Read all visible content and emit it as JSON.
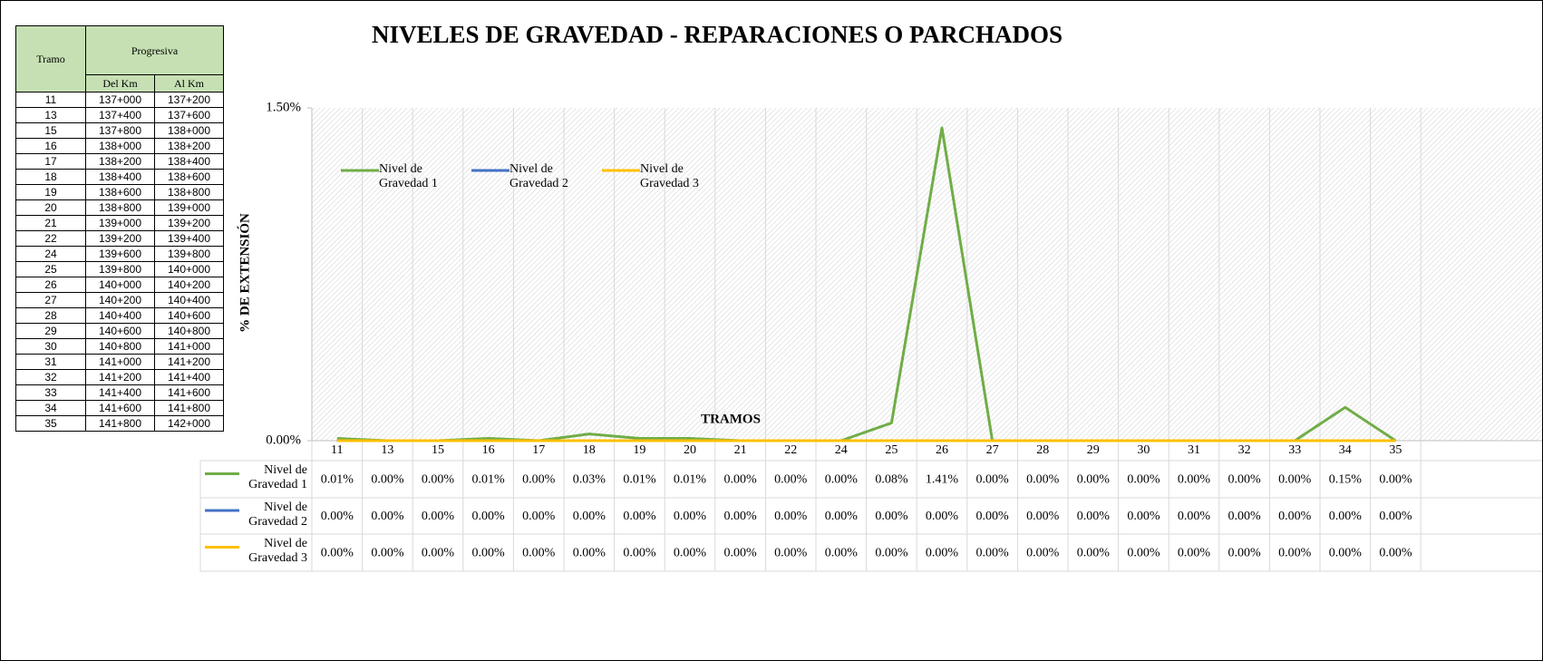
{
  "table": {
    "header": [
      "Tramo",
      "Progresiva",
      "Del Km",
      "Al Km"
    ],
    "rows": [
      [
        "11",
        "137+000",
        "137+200"
      ],
      [
        "13",
        "137+400",
        "137+600"
      ],
      [
        "15",
        "137+800",
        "138+000"
      ],
      [
        "16",
        "138+000",
        "138+200"
      ],
      [
        "17",
        "138+200",
        "138+400"
      ],
      [
        "18",
        "138+400",
        "138+600"
      ],
      [
        "19",
        "138+600",
        "138+800"
      ],
      [
        "20",
        "138+800",
        "139+000"
      ],
      [
        "21",
        "139+000",
        "139+200"
      ],
      [
        "22",
        "139+200",
        "139+400"
      ],
      [
        "24",
        "139+600",
        "139+800"
      ],
      [
        "25",
        "139+800",
        "140+000"
      ],
      [
        "26",
        "140+000",
        "140+200"
      ],
      [
        "27",
        "140+200",
        "140+400"
      ],
      [
        "28",
        "140+400",
        "140+600"
      ],
      [
        "29",
        "140+600",
        "140+800"
      ],
      [
        "30",
        "140+800",
        "141+000"
      ],
      [
        "31",
        "141+000",
        "141+200"
      ],
      [
        "32",
        "141+200",
        "141+400"
      ],
      [
        "33",
        "141+400",
        "141+600"
      ],
      [
        "34",
        "141+600",
        "141+800"
      ],
      [
        "35",
        "141+800",
        "142+000"
      ]
    ]
  },
  "chart_data": {
    "type": "line",
    "title": "NIVELES DE GRAVEDAD - REPARACIONES O PARCHADOS",
    "xlabel": "TRAMOS",
    "ylabel": "% DE EXTENSIÓN",
    "categories": [
      "11",
      "13",
      "15",
      "16",
      "17",
      "18",
      "19",
      "20",
      "21",
      "22",
      "24",
      "25",
      "26",
      "27",
      "28",
      "29",
      "30",
      "31",
      "32",
      "33",
      "34",
      "35"
    ],
    "ylim": [
      0,
      1.5
    ],
    "yticks": [
      {
        "value": 0,
        "label": "0.00%"
      },
      {
        "value": 1.5,
        "label": "1.50%"
      }
    ],
    "grid": false,
    "legend": "upper left",
    "series": [
      {
        "name": "Nivel de Gravedad 1",
        "color": "#70ad47",
        "values": [
          0.01,
          0,
          0,
          0.01,
          0,
          0.03,
          0.01,
          0.01,
          0,
          0,
          0,
          0.08,
          1.41,
          0,
          0,
          0,
          0,
          0,
          0,
          0,
          0.15,
          0
        ],
        "value_labels": [
          "0.01%",
          "0.00%",
          "0.00%",
          "0.01%",
          "0.00%",
          "0.03%",
          "0.01%",
          "0.01%",
          "0.00%",
          "0.00%",
          "0.00%",
          "0.08%",
          "1.41%",
          "0.00%",
          "0.00%",
          "0.00%",
          "0.00%",
          "0.00%",
          "0.00%",
          "0.00%",
          "0.15%",
          "0.00%"
        ]
      },
      {
        "name": "Nivel de Gravedad 2",
        "color": "#4472c4",
        "values": [
          0,
          0,
          0,
          0,
          0,
          0,
          0,
          0,
          0,
          0,
          0,
          0,
          0,
          0,
          0,
          0,
          0,
          0,
          0,
          0,
          0,
          0
        ],
        "value_labels": [
          "0.00%",
          "0.00%",
          "0.00%",
          "0.00%",
          "0.00%",
          "0.00%",
          "0.00%",
          "0.00%",
          "0.00%",
          "0.00%",
          "0.00%",
          "0.00%",
          "0.00%",
          "0.00%",
          "0.00%",
          "0.00%",
          "0.00%",
          "0.00%",
          "0.00%",
          "0.00%",
          "0.00%",
          "0.00%"
        ]
      },
      {
        "name": "Nivel de Gravedad 3",
        "color": "#ffc000",
        "values": [
          0,
          0,
          0,
          0,
          0,
          0,
          0,
          0,
          0,
          0,
          0,
          0,
          0,
          0,
          0,
          0,
          0,
          0,
          0,
          0,
          0,
          0
        ],
        "value_labels": [
          "0.00%",
          "0.00%",
          "0.00%",
          "0.00%",
          "0.00%",
          "0.00%",
          "0.00%",
          "0.00%",
          "0.00%",
          "0.00%",
          "0.00%",
          "0.00%",
          "0.00%",
          "0.00%",
          "0.00%",
          "0.00%",
          "0.00%",
          "0.00%",
          "0.00%",
          "0.00%",
          "0.00%",
          "0.00%"
        ]
      }
    ]
  }
}
